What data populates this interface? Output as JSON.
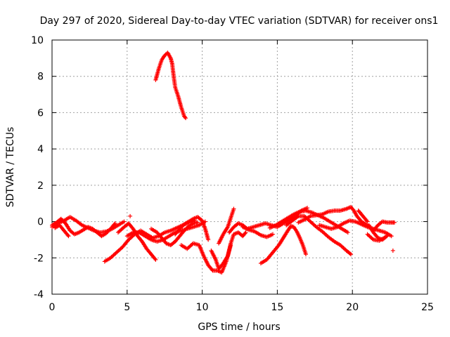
{
  "chart_data": {
    "type": "scatter",
    "title": "Day 297 of 2020, Sidereal Day-to-day VTEC variation (SDTVAR) for receiver ons1",
    "xlabel": "GPS time / hours",
    "ylabel": "SDTVAR / TECUs",
    "xlim": [
      0,
      25
    ],
    "ylim": [
      -4,
      10
    ],
    "xticks": [
      0,
      5,
      10,
      15,
      20,
      25
    ],
    "yticks": [
      -4,
      -2,
      0,
      2,
      4,
      6,
      8,
      10
    ],
    "xtick_labels": [
      "0",
      "5",
      "10",
      "15",
      "20",
      "25"
    ],
    "ytick_labels": [
      "-4",
      "-2",
      "0",
      "2",
      "4",
      "6",
      "8",
      "10"
    ],
    "grid": true,
    "marker": "+",
    "series": [
      {
        "name": "ons1",
        "color": "#ff0000",
        "arcs": [
          [
            [
              6.9,
              7.8
            ],
            [
              7.1,
              8.4
            ],
            [
              7.3,
              8.9
            ],
            [
              7.5,
              9.15
            ],
            [
              7.7,
              9.3
            ],
            [
              7.9,
              9.0
            ],
            [
              8.0,
              8.7
            ],
            [
              8.1,
              8.0
            ],
            [
              8.2,
              7.4
            ],
            [
              8.4,
              6.9
            ],
            [
              8.6,
              6.3
            ],
            [
              8.8,
              5.8
            ],
            [
              8.9,
              5.7
            ]
          ],
          [
            [
              0.0,
              -0.3
            ],
            [
              0.4,
              -0.1
            ],
            [
              0.8,
              0.05
            ],
            [
              1.2,
              0.25
            ],
            [
              1.6,
              0.05
            ],
            [
              2.0,
              -0.2
            ],
            [
              2.4,
              -0.35
            ],
            [
              2.8,
              -0.5
            ],
            [
              3.2,
              -0.6
            ],
            [
              3.6,
              -0.55
            ],
            [
              4.0,
              -0.4
            ],
            [
              4.4,
              -0.2
            ],
            [
              4.8,
              0.0
            ]
          ],
          [
            [
              0.0,
              -0.2
            ],
            [
              0.3,
              -0.05
            ],
            [
              0.6,
              0.15
            ],
            [
              0.9,
              -0.1
            ],
            [
              1.2,
              -0.5
            ],
            [
              1.5,
              -0.7
            ],
            [
              1.8,
              -0.6
            ],
            [
              2.1,
              -0.45
            ],
            [
              2.4,
              -0.3
            ],
            [
              2.7,
              -0.4
            ],
            [
              3.0,
              -0.6
            ],
            [
              3.3,
              -0.8
            ],
            [
              3.6,
              -0.65
            ],
            [
              3.9,
              -0.4
            ],
            [
              4.2,
              -0.1
            ]
          ],
          [
            [
              0.2,
              -0.35
            ],
            [
              0.5,
              -0.2
            ],
            [
              0.8,
              -0.5
            ],
            [
              1.1,
              -0.8
            ]
          ],
          [
            [
              3.5,
              -2.2
            ],
            [
              3.9,
              -2.0
            ],
            [
              4.3,
              -1.7
            ],
            [
              4.7,
              -1.4
            ],
            [
              5.1,
              -1.0
            ],
            [
              5.5,
              -0.7
            ],
            [
              5.9,
              -0.5
            ],
            [
              6.3,
              -0.7
            ],
            [
              6.7,
              -0.9
            ],
            [
              7.1,
              -0.8
            ],
            [
              7.5,
              -0.6
            ],
            [
              7.9,
              -0.5
            ],
            [
              8.3,
              -0.35
            ],
            [
              8.7,
              -0.2
            ],
            [
              9.1,
              -0.05
            ],
            [
              9.5,
              0.05
            ]
          ],
          [
            [
              4.4,
              -0.6
            ],
            [
              4.8,
              -0.3
            ],
            [
              5.1,
              -0.1
            ],
            [
              5.4,
              -0.4
            ],
            [
              5.7,
              -0.8
            ],
            [
              6.0,
              -1.1
            ],
            [
              6.3,
              -1.5
            ],
            [
              6.6,
              -1.8
            ],
            [
              6.9,
              -2.1
            ]
          ],
          [
            [
              5.0,
              -0.8
            ],
            [
              5.4,
              -0.6
            ],
            [
              5.8,
              -0.6
            ],
            [
              6.2,
              -0.8
            ],
            [
              6.6,
              -1.0
            ],
            [
              7.0,
              -1.1
            ],
            [
              7.4,
              -1.0
            ],
            [
              7.8,
              -0.8
            ],
            [
              8.2,
              -0.6
            ],
            [
              8.6,
              -0.5
            ],
            [
              9.0,
              -0.4
            ],
            [
              9.4,
              -0.3
            ],
            [
              9.8,
              -0.2
            ],
            [
              10.2,
              0.0
            ]
          ],
          [
            [
              6.6,
              -0.4
            ],
            [
              7.0,
              -0.6
            ],
            [
              7.3,
              -0.9
            ],
            [
              7.6,
              -1.2
            ],
            [
              7.9,
              -1.3
            ],
            [
              8.2,
              -1.1
            ],
            [
              8.5,
              -0.8
            ],
            [
              8.8,
              -0.5
            ],
            [
              9.1,
              -0.25
            ],
            [
              9.4,
              -0.1
            ],
            [
              9.7,
              -0.05
            ]
          ],
          [
            [
              8.6,
              -1.3
            ],
            [
              9.0,
              -1.5
            ],
            [
              9.4,
              -1.2
            ],
            [
              9.8,
              -1.3
            ],
            [
              10.1,
              -1.9
            ],
            [
              10.4,
              -2.4
            ],
            [
              10.7,
              -2.7
            ],
            [
              11.0,
              -2.7
            ],
            [
              11.3,
              -2.8
            ],
            [
              11.6,
              -2.2
            ],
            [
              11.9,
              -1.3
            ]
          ],
          [
            [
              8.2,
              -0.7
            ],
            [
              8.5,
              -0.4
            ],
            [
              8.8,
              -0.15
            ],
            [
              9.1,
              0.0
            ],
            [
              9.4,
              0.15
            ],
            [
              9.7,
              0.25
            ],
            [
              10.0,
              0.05
            ],
            [
              10.2,
              -0.4
            ],
            [
              10.4,
              -1.0
            ]
          ],
          [
            [
              10.6,
              -1.6
            ],
            [
              10.9,
              -2.1
            ],
            [
              11.1,
              -2.6
            ],
            [
              11.4,
              -2.3
            ],
            [
              11.7,
              -1.9
            ],
            [
              11.9,
              -1.2
            ],
            [
              12.1,
              -0.7
            ],
            [
              12.4,
              -0.6
            ],
            [
              12.7,
              -0.8
            ],
            [
              12.9,
              -0.6
            ]
          ],
          [
            [
              11.1,
              -1.2
            ],
            [
              11.4,
              -0.7
            ],
            [
              11.7,
              -0.3
            ],
            [
              11.9,
              0.2
            ],
            [
              12.1,
              0.7
            ]
          ],
          [
            [
              11.8,
              -0.6
            ],
            [
              12.1,
              -0.3
            ],
            [
              12.4,
              -0.1
            ],
            [
              12.7,
              -0.2
            ],
            [
              13.0,
              -0.4
            ],
            [
              13.4,
              -0.3
            ],
            [
              13.8,
              -0.2
            ],
            [
              14.2,
              -0.1
            ],
            [
              14.6,
              -0.2
            ],
            [
              15.0,
              -0.3
            ],
            [
              15.4,
              -0.1
            ],
            [
              15.8,
              0.1
            ],
            [
              16.2,
              0.3
            ],
            [
              16.6,
              0.6
            ],
            [
              17.0,
              0.75
            ]
          ],
          [
            [
              12.7,
              -0.3
            ],
            [
              13.1,
              -0.45
            ],
            [
              13.5,
              -0.55
            ],
            [
              13.9,
              -0.75
            ],
            [
              14.3,
              -0.85
            ],
            [
              14.7,
              -0.7
            ]
          ],
          [
            [
              13.9,
              -2.3
            ],
            [
              14.3,
              -2.1
            ],
            [
              14.7,
              -1.7
            ],
            [
              15.1,
              -1.3
            ],
            [
              15.4,
              -0.9
            ],
            [
              15.7,
              -0.5
            ],
            [
              15.9,
              -0.25
            ],
            [
              16.1,
              -0.3
            ],
            [
              16.3,
              -0.55
            ],
            [
              16.5,
              -0.9
            ],
            [
              16.7,
              -1.3
            ],
            [
              16.9,
              -1.8
            ]
          ],
          [
            [
              14.5,
              -0.35
            ],
            [
              14.9,
              -0.2
            ],
            [
              15.3,
              0.0
            ],
            [
              15.7,
              0.2
            ],
            [
              16.1,
              0.4
            ],
            [
              16.5,
              0.55
            ],
            [
              16.9,
              0.6
            ],
            [
              17.3,
              0.5
            ],
            [
              17.7,
              0.35
            ],
            [
              18.1,
              0.2
            ],
            [
              18.5,
              0.0
            ],
            [
              18.9,
              -0.2
            ],
            [
              19.3,
              -0.4
            ],
            [
              19.7,
              -0.6
            ]
          ],
          [
            [
              15.6,
              -0.2
            ],
            [
              16.0,
              0.05
            ],
            [
              16.4,
              0.3
            ],
            [
              16.8,
              0.3
            ],
            [
              17.2,
              0.0
            ],
            [
              17.6,
              -0.3
            ],
            [
              18.0,
              -0.55
            ],
            [
              18.4,
              -0.85
            ],
            [
              18.8,
              -1.1
            ],
            [
              19.2,
              -1.3
            ],
            [
              19.6,
              -1.6
            ],
            [
              19.9,
              -1.8
            ]
          ],
          [
            [
              16.4,
              -0.05
            ],
            [
              16.8,
              0.1
            ],
            [
              17.2,
              0.3
            ],
            [
              17.6,
              0.35
            ],
            [
              18.0,
              0.4
            ],
            [
              18.4,
              0.55
            ],
            [
              18.8,
              0.6
            ],
            [
              19.2,
              0.6
            ],
            [
              19.6,
              0.7
            ],
            [
              19.9,
              0.8
            ],
            [
              20.1,
              0.6
            ],
            [
              20.3,
              0.3
            ],
            [
              20.6,
              0.0
            ],
            [
              21.0,
              -0.2
            ],
            [
              21.4,
              -0.5
            ]
          ],
          [
            [
              17.8,
              -0.2
            ],
            [
              18.2,
              -0.3
            ],
            [
              18.6,
              -0.4
            ],
            [
              19.0,
              -0.3
            ],
            [
              19.4,
              -0.1
            ],
            [
              19.8,
              0.05
            ],
            [
              20.2,
              0.0
            ],
            [
              20.6,
              -0.15
            ],
            [
              21.0,
              -0.3
            ],
            [
              21.4,
              -0.4
            ],
            [
              21.8,
              -0.5
            ],
            [
              22.2,
              -0.6
            ],
            [
              22.6,
              -0.8
            ]
          ],
          [
            [
              21.1,
              -0.2
            ],
            [
              21.4,
              -0.6
            ],
            [
              21.7,
              -0.9
            ],
            [
              22.0,
              -1.0
            ],
            [
              22.3,
              -0.8
            ]
          ],
          [
            [
              21.0,
              -0.7
            ],
            [
              21.4,
              -1.0
            ],
            [
              21.8,
              -1.05
            ],
            [
              22.2,
              -0.85
            ]
          ],
          [
            [
              21.4,
              -0.5
            ],
            [
              21.7,
              -0.2
            ],
            [
              22.0,
              0.0
            ],
            [
              22.3,
              -0.05
            ],
            [
              22.6,
              -0.05
            ],
            [
              22.8,
              -0.05
            ]
          ],
          [
            [
              20.4,
              0.6
            ],
            [
              20.7,
              0.3
            ],
            [
              21.0,
              0.0
            ]
          ]
        ],
        "isolated_points": [
          [
            5.2,
            0.3
          ],
          [
            22.7,
            -1.6
          ]
        ]
      }
    ]
  }
}
